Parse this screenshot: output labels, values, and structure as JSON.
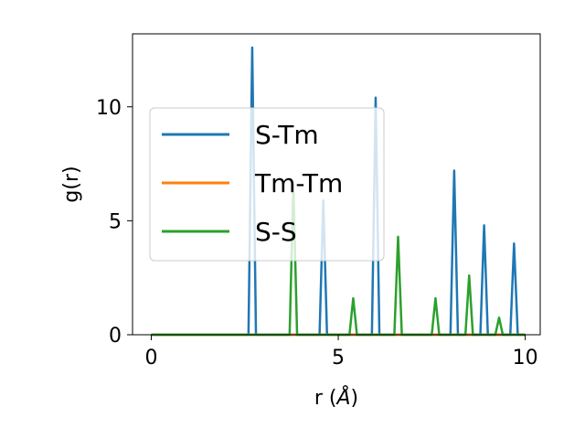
{
  "chart_data": {
    "type": "line",
    "title": "",
    "xlabel_prefix": "r (",
    "xlabel_unit": "Å",
    "xlabel_suffix": ")",
    "ylabel": "g(r)",
    "xlim": [
      -0.5,
      10.4
    ],
    "ylim": [
      0,
      13.2
    ],
    "xticks": [
      0,
      5,
      10
    ],
    "xtick_labels": [
      "0",
      "5",
      "10"
    ],
    "yticks": [
      0,
      5,
      10
    ],
    "ytick_labels": [
      "0",
      "5",
      "10"
    ],
    "grid": false,
    "legend_position": "center-left",
    "x_range": [
      0,
      10
    ],
    "peak_halfwidth": 0.1,
    "series": [
      {
        "name": "S-Tm",
        "color": "#1f77b4",
        "peaks": [
          [
            2.7,
            12.6
          ],
          [
            4.6,
            5.9
          ],
          [
            6.0,
            10.4
          ],
          [
            8.1,
            7.2
          ],
          [
            8.9,
            4.8
          ],
          [
            9.7,
            4.0
          ]
        ]
      },
      {
        "name": "Tm-Tm",
        "color": "#ff7f0e",
        "peaks": []
      },
      {
        "name": "S-S",
        "color": "#2ca02c",
        "peaks": [
          [
            3.8,
            6.6
          ],
          [
            5.4,
            1.6
          ],
          [
            6.6,
            4.3
          ],
          [
            7.6,
            1.6
          ],
          [
            8.5,
            2.6
          ],
          [
            9.3,
            0.75
          ]
        ]
      }
    ]
  }
}
